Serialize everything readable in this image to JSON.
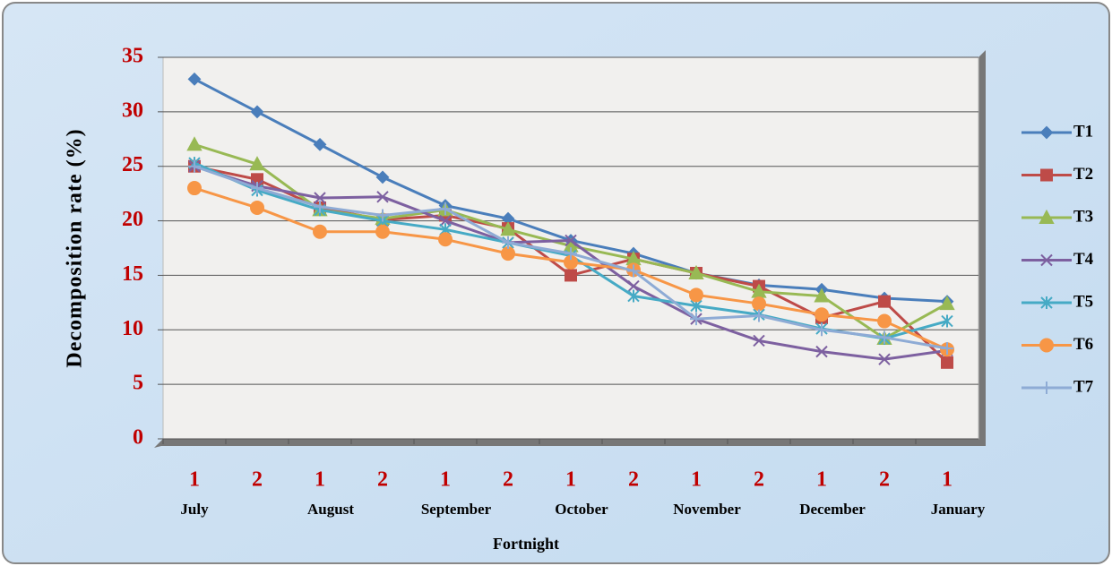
{
  "chart_data": {
    "type": "line",
    "y_axis_label": "Decomposition rate (%)",
    "x_axis_label": "Fortnight",
    "categories": [
      "1",
      "2",
      "1",
      "2",
      "1",
      "2",
      "1",
      "2",
      "1",
      "2",
      "1",
      "2",
      "1"
    ],
    "month_labels": [
      "July",
      null,
      "August",
      null,
      "September",
      null,
      "October",
      null,
      "November",
      null,
      "December",
      null,
      "January"
    ],
    "ylim": [
      0,
      35
    ],
    "yticks": [
      0,
      5,
      10,
      15,
      20,
      25,
      30,
      35
    ],
    "grid": true,
    "legend": "right",
    "series": [
      {
        "name": "T1",
        "color": "#4a7ebb",
        "marker": "diamond",
        "values": [
          33,
          30,
          27,
          24,
          21.4,
          20.2,
          18.2,
          17,
          15.2,
          14.1,
          13.7,
          12.9,
          12.6
        ]
      },
      {
        "name": "T2",
        "color": "#be4b48",
        "marker": "square",
        "values": [
          25,
          23.8,
          21.2,
          20.1,
          20.5,
          19.3,
          15,
          16.5,
          15.2,
          14,
          11.1,
          12.6,
          7
        ]
      },
      {
        "name": "T3",
        "color": "#98b954",
        "marker": "triangle",
        "values": [
          27,
          25.2,
          21,
          20.2,
          21,
          19.2,
          17.7,
          16.5,
          15.2,
          13.5,
          13.1,
          9.2,
          12.4
        ]
      },
      {
        "name": "T4",
        "color": "#7d60a0",
        "marker": "x",
        "values": [
          25,
          23.2,
          22.1,
          22.2,
          20,
          18,
          18.2,
          14,
          11,
          9,
          8,
          7.3,
          8.1
        ]
      },
      {
        "name": "T5",
        "color": "#46aac5",
        "marker": "asterisk",
        "values": [
          25.3,
          22.8,
          21,
          20,
          19.2,
          18,
          16.8,
          13.1,
          12.2,
          11.4,
          10.1,
          9.2,
          10.8
        ]
      },
      {
        "name": "T6",
        "color": "#f79646",
        "marker": "circle",
        "values": [
          23,
          21.2,
          19,
          19,
          18.3,
          17,
          16.2,
          15.5,
          13.2,
          12.4,
          11.4,
          10.8,
          8.2
        ]
      },
      {
        "name": "T7",
        "color": "#8eabd5",
        "marker": "plus",
        "values": [
          25,
          23,
          21.3,
          20.5,
          21.1,
          18,
          17,
          15.4,
          11,
          11.3,
          10,
          9.3,
          8.3
        ]
      }
    ]
  }
}
